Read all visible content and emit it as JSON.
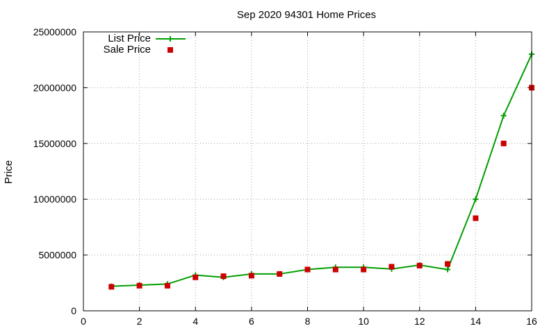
{
  "chart_data": {
    "type": "line",
    "title": "Sep 2020 94301 Home Prices",
    "xlabel": "",
    "ylabel": "Price",
    "xlim": [
      0,
      16
    ],
    "ylim": [
      0,
      25000000
    ],
    "xticks": [
      0,
      2,
      4,
      6,
      8,
      10,
      12,
      14,
      16
    ],
    "yticks": [
      0,
      5000000,
      10000000,
      15000000,
      20000000,
      25000000
    ],
    "grid": true,
    "legend_position": "top-left",
    "series": [
      {
        "name": "List Price",
        "style": "line-points",
        "marker": "plus",
        "color": "#009e00",
        "x": [
          1,
          2,
          3,
          4,
          5,
          6,
          7,
          8,
          9,
          10,
          11,
          12,
          13,
          14,
          15,
          16
        ],
        "y": [
          2200000,
          2300000,
          2400000,
          3200000,
          3000000,
          3300000,
          3300000,
          3700000,
          3900000,
          3900000,
          3750000,
          4100000,
          3700000,
          10000000,
          17500000,
          23000000
        ]
      },
      {
        "name": "Sale Price",
        "style": "points",
        "marker": "square",
        "color": "#cc0000",
        "x": [
          1,
          2,
          3,
          4,
          5,
          6,
          7,
          8,
          9,
          10,
          11,
          12,
          13,
          14,
          15,
          16
        ],
        "y": [
          2150000,
          2250000,
          2250000,
          3000000,
          3100000,
          3150000,
          3300000,
          3700000,
          3700000,
          3700000,
          3950000,
          4050000,
          4200000,
          8300000,
          15000000,
          20000000
        ]
      }
    ]
  }
}
